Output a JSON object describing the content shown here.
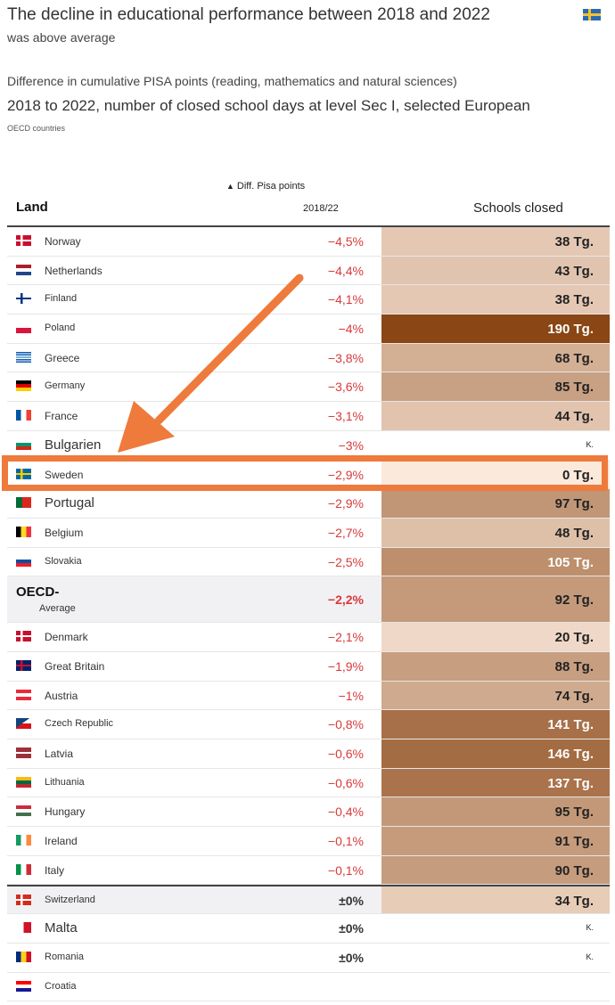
{
  "header": {
    "title_line1": "The decline in educational performance between 2018 and 2022",
    "title_line2": "was above average",
    "flag_icon": "sweden-flag-icon"
  },
  "subtitle": {
    "line1": "Difference in cumulative PISA points (reading, mathematics and natural sciences)",
    "line2": "2018 to 2022, number of closed school days at level Sec I, selected European",
    "line3": "OECD countries"
  },
  "columns": {
    "land": "Land",
    "diff_header": "Diff. Pisa points",
    "diff_arrow": "▲",
    "year": "2018/22",
    "closed": "Schools closed"
  },
  "colors": {
    "negative": "#d73a3a",
    "highlight": "#ee7a3c",
    "scale_low": "#fbe9dc",
    "scale_high": "#8a4614"
  },
  "chart_data": {
    "type": "table",
    "columns": [
      "Land",
      "Diff. Pisa points 2018/22",
      "Schools closed"
    ],
    "rows": [
      {
        "country": "Norway",
        "diff": "−4,5%",
        "closed": "38 Tg.",
        "days": 38,
        "flag": "norway-flag"
      },
      {
        "country": "Netherlands",
        "diff": "−4,4%",
        "closed": "43 Tg.",
        "days": 43,
        "flag": "netherlands-flag"
      },
      {
        "country": "Finland",
        "diff": "−4,1%",
        "closed": "38 Tg.",
        "days": 38,
        "flag": "finland-flag"
      },
      {
        "country": "Poland",
        "diff": "−4%",
        "closed": "190 Tg.",
        "days": 190,
        "flag": "poland-flag"
      },
      {
        "country": "Greece",
        "diff": "−3,8%",
        "closed": "68 Tg.",
        "days": 68,
        "flag": "greece-flag"
      },
      {
        "country": "Germany",
        "diff": "−3,6%",
        "closed": "85 Tg.",
        "days": 85,
        "flag": "germany-flag"
      },
      {
        "country": "France",
        "diff": "−3,1%",
        "closed": "44 Tg.",
        "days": 44,
        "flag": "france-flag"
      },
      {
        "country": "Bulgarien",
        "diff": "−3%",
        "closed": "K.",
        "days": null,
        "flag": "bulgaria-flag"
      },
      {
        "country": "Sweden",
        "diff": "−2,9%",
        "closed": "0 Tg.",
        "days": 0,
        "flag": "sweden-flag"
      },
      {
        "country": "Portugal",
        "diff": "−2,9%",
        "closed": "97 Tg.",
        "days": 97,
        "flag": "portugal-flag"
      },
      {
        "country": "Belgium",
        "diff": "−2,7%",
        "closed": "48 Tg.",
        "days": 48,
        "flag": "belgium-flag"
      },
      {
        "country": "Slovakia",
        "diff": "−2,5%",
        "closed": "105 Tg.",
        "days": 105,
        "flag": "slovakia-flag"
      },
      {
        "country": "OECD- Average",
        "diff": "−2,2%",
        "closed": "92 Tg.",
        "days": 92,
        "flag": null
      },
      {
        "country": "Denmark",
        "diff": "−2,1%",
        "closed": "20 Tg.",
        "days": 20,
        "flag": "denmark-flag"
      },
      {
        "country": "Great Britain",
        "diff": "−1,9%",
        "closed": "88 Tg.",
        "days": 88,
        "flag": "uk-flag"
      },
      {
        "country": "Austria",
        "diff": "−1%",
        "closed": "74 Tg.",
        "days": 74,
        "flag": "austria-flag"
      },
      {
        "country": "Czech Republic",
        "diff": "−0,8%",
        "closed": "141 Tg.",
        "days": 141,
        "flag": "czech-flag"
      },
      {
        "country": "Latvia",
        "diff": "−0,6%",
        "closed": "146 Tg.",
        "days": 146,
        "flag": "latvia-flag"
      },
      {
        "country": "Lithuania",
        "diff": "−0,6%",
        "closed": "137 Tg.",
        "days": 137,
        "flag": "lithuania-flag"
      },
      {
        "country": "Hungary",
        "diff": "−0,4%",
        "closed": "95 Tg.",
        "days": 95,
        "flag": "hungary-flag"
      },
      {
        "country": "Ireland",
        "diff": "−0,1%",
        "closed": "91 Tg.",
        "days": 91,
        "flag": "ireland-flag"
      },
      {
        "country": "Italy",
        "diff": "−0,1%",
        "closed": "90 Tg.",
        "days": 90,
        "flag": "italy-flag"
      },
      {
        "country": "Switzerland",
        "diff": "±0%",
        "closed": "34 Tg.",
        "days": 34,
        "flag": "switzerland-flag"
      },
      {
        "country": "Malta",
        "diff": "±0%",
        "closed": "K.",
        "days": null,
        "flag": "malta-flag"
      },
      {
        "country": "Romania",
        "diff": "±0%",
        "closed": "K.",
        "days": null,
        "flag": "romania-flag"
      },
      {
        "country": "Croatia",
        "diff": "",
        "closed": "",
        "days": null,
        "flag": "croatia-flag"
      }
    ],
    "highlighted_row": "Sweden"
  }
}
